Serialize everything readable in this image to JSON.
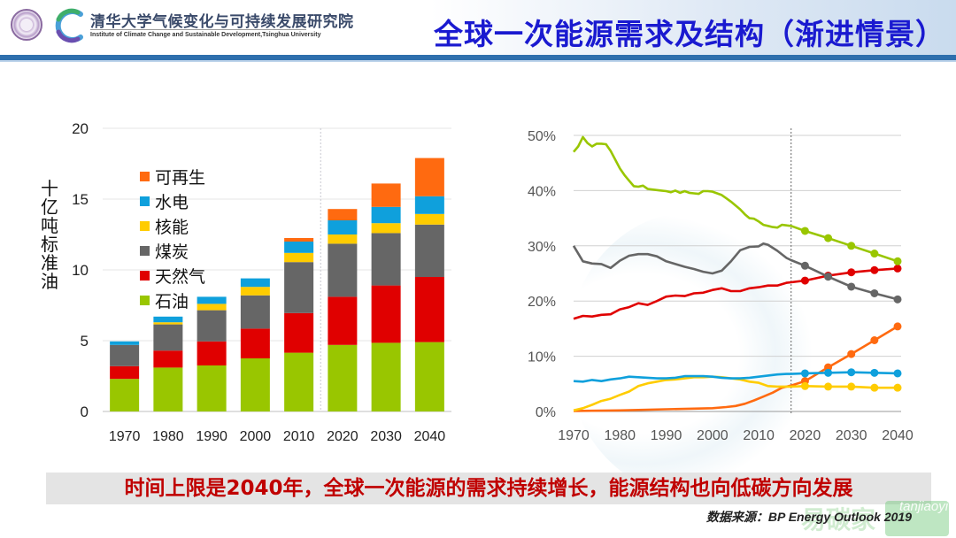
{
  "header": {
    "institute_cn": "清华大学气候变化与可持续发展研究院",
    "institute_en": "Institute of Climate Change and Sustainable Development,Tsinghua University",
    "title": "全球一次能源需求及结构（渐进情景）",
    "logo_icons": [
      "university-seal-icon",
      "c-swirl-logo-icon"
    ]
  },
  "colors": {
    "oil": "#99c600",
    "gas": "#e00000",
    "coal": "#666666",
    "nuclear": "#ffcc00",
    "hydro": "#0fa0dc",
    "renewables": "#ff6a10",
    "title": "#1a1ad0",
    "header_bar": "#2e6fad",
    "conclusion": "#c00000"
  },
  "chart_data": [
    {
      "type": "bar",
      "stacked": true,
      "title": "",
      "xlabel": "",
      "ylabel": "十亿吨标准油",
      "ylim": [
        0,
        20
      ],
      "yticks": [
        "0",
        "5",
        "10",
        "15",
        "20"
      ],
      "grid": true,
      "legend_position": "top-left",
      "divider_after_category": "2010",
      "categories": [
        "1970",
        "1980",
        "1990",
        "2000",
        "2010",
        "2020",
        "2030",
        "2040"
      ],
      "series": [
        {
          "key": "oil",
          "name": "石油",
          "values": [
            2.3,
            3.1,
            3.25,
            3.75,
            4.15,
            4.7,
            4.85,
            4.9
          ]
        },
        {
          "key": "gas",
          "name": "天然气",
          "values": [
            0.9,
            1.2,
            1.7,
            2.1,
            2.8,
            3.4,
            4.05,
            4.6
          ]
        },
        {
          "key": "coal",
          "name": "煤炭",
          "values": [
            1.5,
            1.85,
            2.2,
            2.35,
            3.6,
            3.75,
            3.7,
            3.7
          ]
        },
        {
          "key": "nuclear",
          "name": "核能",
          "values": [
            0.0,
            0.15,
            0.45,
            0.6,
            0.65,
            0.65,
            0.7,
            0.75
          ]
        },
        {
          "key": "hydro",
          "name": "水电",
          "values": [
            0.25,
            0.4,
            0.5,
            0.6,
            0.8,
            1.0,
            1.15,
            1.25
          ]
        },
        {
          "key": "renewables",
          "name": "可再生",
          "values": [
            0.0,
            0.0,
            0.0,
            0.0,
            0.25,
            0.8,
            1.65,
            2.7
          ]
        }
      ],
      "legend_order": [
        "renewables",
        "hydro",
        "nuclear",
        "coal",
        "gas",
        "oil"
      ]
    },
    {
      "type": "line",
      "title": "",
      "xlabel": "",
      "ylabel": "",
      "xlim": [
        1970,
        2040
      ],
      "ylim": [
        0,
        50
      ],
      "xticks": [
        "1970",
        "1980",
        "1990",
        "2000",
        "2010",
        "2020",
        "2030",
        "2040"
      ],
      "yticks": [
        "0%",
        "10%",
        "20%",
        "30%",
        "40%",
        "50%"
      ],
      "grid": true,
      "divider_x": 2017,
      "marker_years": [
        2020,
        2025,
        2030,
        2035,
        2040
      ],
      "series": [
        {
          "key": "oil",
          "name": "石油",
          "x": [
            1970,
            1971,
            1972,
            1973,
            1974,
            1975,
            1976,
            1977,
            1978,
            1979,
            1980,
            1981,
            1982,
            1983,
            1984,
            1985,
            1986,
            1987,
            1988,
            1989,
            1990,
            1991,
            1992,
            1993,
            1994,
            1995,
            1996,
            1997,
            1998,
            1999,
            2000,
            2001,
            2002,
            2003,
            2004,
            2005,
            2006,
            2007,
            2008,
            2009,
            2010,
            2011,
            2012,
            2013,
            2014,
            2015,
            2016,
            2017,
            2020,
            2025,
            2030,
            2035,
            2040
          ],
          "y": [
            47.0,
            48.0,
            49.7,
            48.6,
            48.0,
            48.5,
            48.5,
            48.4,
            47.2,
            45.6,
            44.0,
            42.8,
            41.8,
            40.8,
            40.7,
            40.9,
            40.3,
            40.2,
            40.1,
            40.0,
            39.9,
            39.7,
            40.0,
            39.6,
            39.9,
            39.6,
            39.5,
            39.4,
            39.9,
            39.9,
            39.8,
            39.5,
            39.2,
            38.6,
            38.0,
            37.3,
            36.6,
            35.7,
            35.0,
            34.9,
            34.4,
            33.8,
            33.6,
            33.4,
            33.3,
            33.8,
            33.7,
            33.6,
            32.7,
            31.4,
            30.0,
            28.6,
            27.2
          ]
        },
        {
          "key": "gas",
          "name": "天然气",
          "x": [
            1970,
            1972,
            1974,
            1976,
            1978,
            1980,
            1982,
            1984,
            1986,
            1988,
            1990,
            1992,
            1994,
            1996,
            1998,
            2000,
            2002,
            2004,
            2006,
            2008,
            2010,
            2012,
            2014,
            2016,
            2017,
            2020,
            2025,
            2030,
            2035,
            2040
          ],
          "y": [
            16.8,
            17.3,
            17.2,
            17.5,
            17.6,
            18.5,
            18.9,
            19.6,
            19.3,
            20.0,
            20.8,
            21.0,
            20.9,
            21.4,
            21.5,
            22.0,
            22.3,
            21.8,
            21.8,
            22.3,
            22.5,
            22.8,
            22.8,
            23.3,
            23.4,
            23.7,
            24.6,
            25.2,
            25.6,
            25.9
          ]
        },
        {
          "key": "coal",
          "name": "煤炭",
          "x": [
            1970,
            1972,
            1974,
            1976,
            1978,
            1980,
            1982,
            1984,
            1986,
            1988,
            1990,
            1992,
            1994,
            1996,
            1998,
            2000,
            2002,
            2004,
            2006,
            2008,
            2010,
            2011,
            2012,
            2014,
            2016,
            2017,
            2020,
            2025,
            2030,
            2035,
            2040
          ],
          "y": [
            30.0,
            27.2,
            26.8,
            26.7,
            26.0,
            27.3,
            28.2,
            28.5,
            28.5,
            28.1,
            27.2,
            26.7,
            26.2,
            25.8,
            25.3,
            25.0,
            25.5,
            27.2,
            29.2,
            29.8,
            29.9,
            30.4,
            30.2,
            29.1,
            27.8,
            27.4,
            26.4,
            24.4,
            22.6,
            21.4,
            20.3
          ]
        },
        {
          "key": "nuclear",
          "name": "核能",
          "x": [
            1970,
            1972,
            1974,
            1976,
            1978,
            1980,
            1982,
            1984,
            1986,
            1988,
            1990,
            1992,
            1994,
            1996,
            1998,
            2000,
            2002,
            2004,
            2006,
            2008,
            2010,
            2012,
            2014,
            2016,
            2017,
            2020,
            2025,
            2030,
            2035,
            2040
          ],
          "y": [
            0.2,
            0.6,
            1.2,
            1.9,
            2.3,
            3.0,
            3.6,
            4.6,
            5.1,
            5.4,
            5.7,
            5.8,
            6.0,
            6.2,
            6.2,
            6.3,
            6.2,
            6.0,
            5.8,
            5.4,
            5.2,
            4.6,
            4.5,
            4.5,
            4.5,
            4.6,
            4.5,
            4.5,
            4.3,
            4.3
          ]
        },
        {
          "key": "hydro",
          "name": "水电",
          "x": [
            1970,
            1972,
            1974,
            1976,
            1978,
            1980,
            1982,
            1984,
            1986,
            1988,
            1990,
            1992,
            1994,
            1996,
            1998,
            2000,
            2002,
            2004,
            2006,
            2008,
            2010,
            2012,
            2014,
            2016,
            2017,
            2020,
            2025,
            2030,
            2035,
            2040
          ],
          "y": [
            5.5,
            5.4,
            5.7,
            5.5,
            5.8,
            6.0,
            6.3,
            6.2,
            6.1,
            6.0,
            6.0,
            6.1,
            6.4,
            6.4,
            6.4,
            6.3,
            6.1,
            6.0,
            6.0,
            6.1,
            6.3,
            6.5,
            6.7,
            6.8,
            6.8,
            6.9,
            7.0,
            7.1,
            7.0,
            6.9
          ]
        },
        {
          "key": "renewables",
          "name": "可再生",
          "x": [
            1970,
            1980,
            1990,
            1995,
            2000,
            2003,
            2005,
            2007,
            2009,
            2011,
            2013,
            2015,
            2017,
            2020,
            2025,
            2030,
            2035,
            2040
          ],
          "y": [
            0.1,
            0.2,
            0.4,
            0.5,
            0.6,
            0.8,
            1.0,
            1.4,
            2.0,
            2.7,
            3.4,
            4.3,
            4.7,
            5.5,
            8.0,
            10.4,
            12.9,
            15.4
          ]
        }
      ]
    }
  ],
  "footer": {
    "conclusion": "时间上限是2040年，全球一次能源的需求持续增长，能源结构也向低碳方向发展",
    "source": "数据来源：BP Energy Outlook 2019",
    "watermark_cn": "易碳家",
    "watermark_en": "tanjiaoyi .com"
  }
}
